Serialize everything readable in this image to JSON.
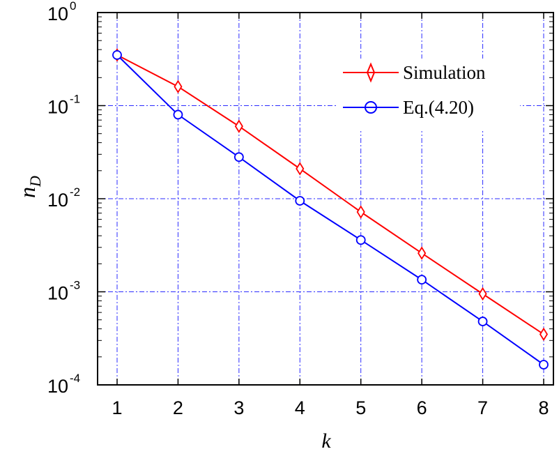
{
  "chart_data": {
    "type": "line",
    "xlabel": "k",
    "ylabel": {
      "main": "n",
      "sub": "D"
    },
    "xlim": [
      1,
      8
    ],
    "ylim": [
      0.0001,
      1
    ],
    "yscale": "log",
    "grid": true,
    "legend_position": "top-right",
    "x": [
      1,
      2,
      3,
      4,
      5,
      6,
      7,
      8
    ],
    "x_ticks": [
      "1",
      "2",
      "3",
      "4",
      "5",
      "6",
      "7",
      "8"
    ],
    "y_ticks": [
      {
        "base": "10",
        "exp": "-4",
        "value": 0.0001
      },
      {
        "base": "10",
        "exp": "-3",
        "value": 0.001
      },
      {
        "base": "10",
        "exp": "-2",
        "value": 0.01
      },
      {
        "base": "10",
        "exp": "-1",
        "value": 0.1
      },
      {
        "base": "10",
        "exp": "0",
        "value": 1
      }
    ],
    "series": [
      {
        "name": "Simulation",
        "color": "#ff0000",
        "marker": "diamond",
        "values": [
          0.35,
          0.16,
          0.06,
          0.021,
          0.0072,
          0.0026,
          0.00095,
          0.00035
        ]
      },
      {
        "name": "Eq.(4.20)",
        "color": "#0000ff",
        "marker": "circle",
        "values": [
          0.35,
          0.08,
          0.028,
          0.0095,
          0.0036,
          0.00135,
          0.00048,
          0.000165
        ]
      }
    ],
    "colors": {
      "grid": "#2b2bff",
      "axis": "#000000"
    }
  }
}
